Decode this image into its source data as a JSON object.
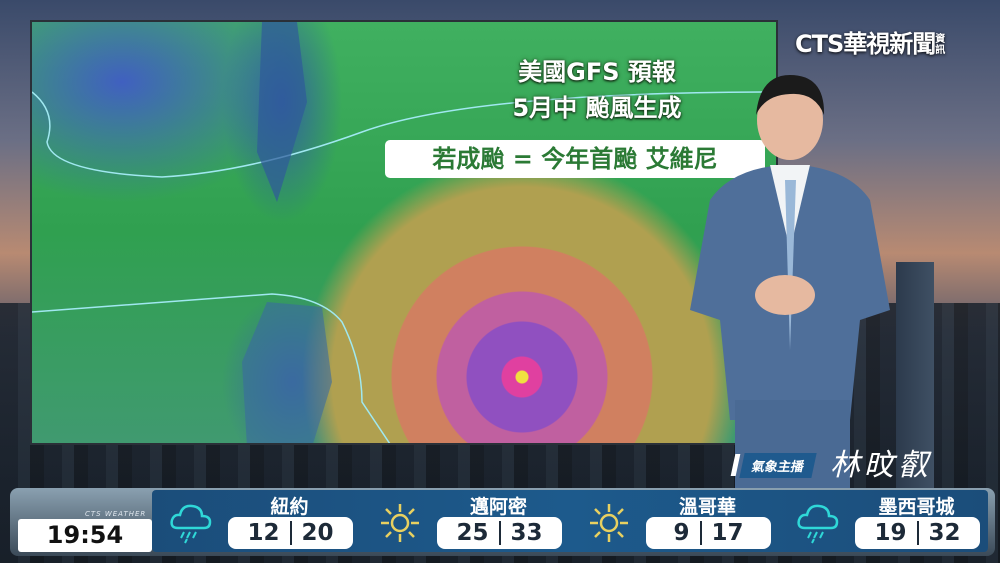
{
  "map": {
    "title_line1": "美國GFS 預報",
    "title_line2": "5月中 颱風生成",
    "callout": "若成颱 = 今年首颱 艾維尼"
  },
  "logo": {
    "text": "CTS華視新聞",
    "suffix": "資訊"
  },
  "anchor": {
    "label": "氣象主播",
    "signature": "林旼叡"
  },
  "ticker": {
    "brand": "CTS WEATHER",
    "time": "19:54",
    "cities": [
      {
        "name": "紐約",
        "low": "12",
        "high": "20",
        "icon": "rain-cloud-icon"
      },
      {
        "name": "邁阿密",
        "low": "25",
        "high": "33",
        "icon": "sun-icon"
      },
      {
        "name": "溫哥華",
        "low": "9",
        "high": "17",
        "icon": "sun-icon"
      },
      {
        "name": "墨西哥城",
        "low": "19",
        "high": "32",
        "icon": "rain-cloud-icon"
      }
    ]
  },
  "colors": {
    "ticker_blue": "#1d5a8c",
    "callout_green": "#2b7a35",
    "rain_icon": "#2fd8d8",
    "sun_icon": "#e8d060"
  }
}
